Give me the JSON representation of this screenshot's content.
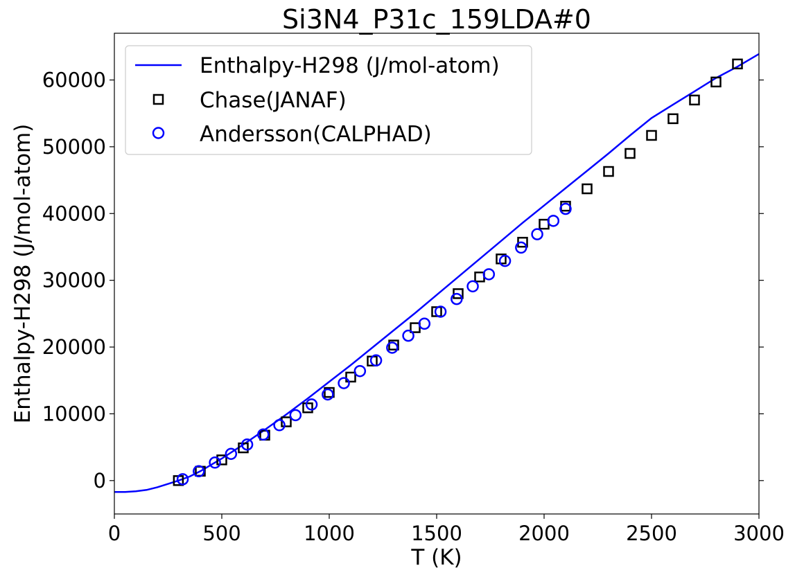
{
  "chart_data": {
    "type": "line",
    "title": "Si3N4_P31c_159LDA#0",
    "xlabel": "T (K)",
    "ylabel": "Enthalpy-H298 (J/mol-atom)",
    "xlim": [
      0,
      3000
    ],
    "ylim": [
      -5000,
      67000
    ],
    "xticks": [
      0,
      500,
      1000,
      1500,
      2000,
      2500,
      3000
    ],
    "yticks": [
      0,
      10000,
      20000,
      30000,
      40000,
      50000,
      60000
    ],
    "grid": false,
    "legend_position": "upper-left",
    "colors": {
      "line": "#0000ff",
      "chase": "#000000",
      "andersson": "#0000ff"
    },
    "series": [
      {
        "name": "Enthalpy-H298 (J/mol-atom)",
        "kind": "line",
        "x": [
          0,
          50,
          100,
          150,
          200,
          250,
          298,
          350,
          400,
          500,
          600,
          700,
          800,
          900,
          1000,
          1100,
          1200,
          1300,
          1400,
          1500,
          1600,
          1700,
          1800,
          1900,
          2000,
          2100,
          2200,
          2300,
          2400,
          2500,
          2600,
          2700,
          2800,
          2900,
          3000
        ],
        "y": [
          -1700,
          -1700,
          -1600,
          -1400,
          -1000,
          -500,
          0,
          600,
          1400,
          3300,
          5400,
          7600,
          9900,
          12300,
          14800,
          17300,
          19900,
          22500,
          25100,
          27800,
          30500,
          33200,
          35900,
          38600,
          41200,
          43800,
          46400,
          49000,
          51700,
          54300,
          56300,
          58300,
          60300,
          62000,
          63900
        ]
      },
      {
        "name": "Chase(JANAF)",
        "kind": "scatter-square",
        "x": [
          298,
          400,
          500,
          600,
          700,
          800,
          900,
          1000,
          1100,
          1200,
          1300,
          1400,
          1500,
          1600,
          1700,
          1800,
          1900,
          2000,
          2100,
          2200,
          2300,
          2400,
          2500,
          2600,
          2700,
          2800,
          2900
        ],
        "y": [
          0,
          1400,
          3100,
          4900,
          6800,
          8800,
          10900,
          13200,
          15500,
          17900,
          20300,
          22900,
          25300,
          28000,
          30500,
          33200,
          35700,
          38400,
          41100,
          43700,
          46300,
          49000,
          51700,
          54200,
          57000,
          59700,
          62400
        ]
      },
      {
        "name": "Andersson(CALPHAD)",
        "kind": "scatter-circle",
        "x": [
          318,
          393,
          468,
          543,
          618,
          693,
          768,
          843,
          918,
          993,
          1068,
          1143,
          1218,
          1293,
          1368,
          1443,
          1518,
          1593,
          1668,
          1743,
          1818,
          1893,
          1968,
          2043,
          2100
        ],
        "y": [
          200,
          1400,
          2700,
          4000,
          5400,
          6900,
          8300,
          9800,
          11400,
          12900,
          14600,
          16400,
          18000,
          19900,
          21700,
          23500,
          25300,
          27200,
          29100,
          30900,
          32900,
          34900,
          36900,
          38900,
          40700
        ]
      }
    ]
  }
}
